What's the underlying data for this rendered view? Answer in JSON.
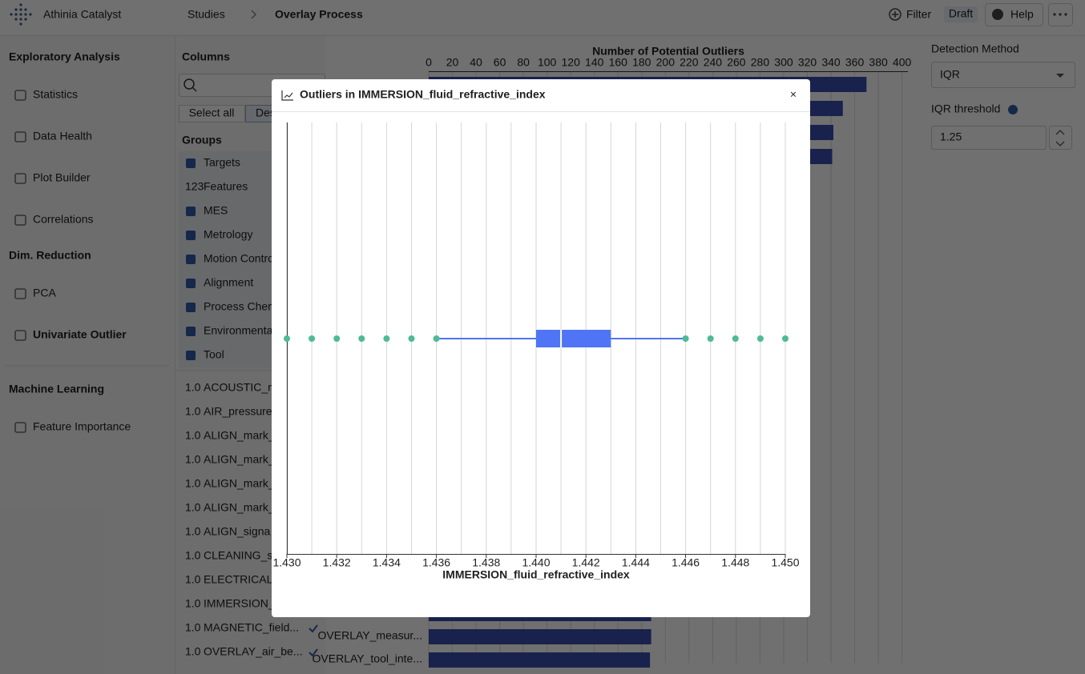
{
  "header": {
    "app_name": "Athinia Catalyst",
    "breadcrumb": [
      "Studies",
      "Overlay Process"
    ],
    "filter": "Filter",
    "status": "Draft",
    "help": "Help"
  },
  "sidebar": {
    "sections": [
      {
        "title": "Exploratory Analysis",
        "items": [
          "Statistics",
          "Data Health",
          "Plot Builder",
          "Correlations"
        ]
      },
      {
        "title": "Dim. Reduction",
        "items": [
          "PCA",
          "Univariate Outlier"
        ]
      },
      {
        "title": "Machine Learning",
        "items": [
          "Feature Importance"
        ]
      }
    ]
  },
  "columns_panel": {
    "title": "Columns",
    "select_all": "Select all",
    "deselect_all": "Deselect all",
    "groups_title": "Groups",
    "features_badge": "123",
    "groups": [
      "Targets",
      "Features",
      "MES",
      "Metrology",
      "Motion Control",
      "Alignment",
      "Process Chemistry",
      "Environmental",
      "Tool"
    ],
    "column_badge": "1.0",
    "columns": [
      "ACOUSTIC_n",
      "AIR_pressure",
      "ALIGN_mark_",
      "ALIGN_mark_",
      "ALIGN_mark_",
      "ALIGN_mark_",
      "ALIGN_signa",
      "CLEANING_s",
      "ELECTRICAL_",
      "IMMERSION_",
      "MAGNETIC_field...",
      "OVERLAY_air_be..."
    ]
  },
  "background_chart": {
    "type": "bar",
    "x_label": "Number of Potential Outliers",
    "xlim": [
      0,
      405
    ],
    "xticks": [
      0,
      20,
      40,
      60,
      80,
      100,
      120,
      140,
      160,
      180,
      200,
      220,
      240,
      260,
      280,
      300,
      320,
      340,
      360,
      380,
      400
    ],
    "color": "#3a4db0",
    "top_values": [
      370,
      350,
      342,
      341
    ],
    "bottom_categories": [
      null,
      "OVERLAY_measur...",
      "OVERLAY_tool_inte..."
    ],
    "bottom_values": [
      188,
      188,
      187
    ]
  },
  "settings": {
    "detection_label": "Detection Method",
    "detection_value": "IQR",
    "threshold_label": "IQR threshold",
    "threshold_value": "1.25"
  },
  "modal": {
    "close": "×"
  },
  "chart_data": {
    "type": "box",
    "title": "Outliers in IMMERSION_fluid_refractive_index",
    "x_label": "IMMERSION_fluid_refractive_index",
    "xlim": [
      1.43,
      1.45
    ],
    "xticks": [
      {
        "value": 1.43,
        "label": "1.430"
      },
      {
        "value": 1.432,
        "label": "1.432"
      },
      {
        "value": 1.434,
        "label": "1.434"
      },
      {
        "value": 1.436,
        "label": "1.436"
      },
      {
        "value": 1.438,
        "label": "1.438"
      },
      {
        "value": 1.44,
        "label": "1.440"
      },
      {
        "value": 1.442,
        "label": "1.442"
      },
      {
        "value": 1.444,
        "label": "1.444"
      },
      {
        "value": 1.446,
        "label": "1.446"
      },
      {
        "value": 1.448,
        "label": "1.448"
      },
      {
        "value": 1.45,
        "label": "1.450"
      }
    ],
    "minor_grid": [
      1.431,
      1.433,
      1.435,
      1.437,
      1.439,
      1.441,
      1.443,
      1.445,
      1.447,
      1.449
    ],
    "grid": true,
    "box": {
      "whisker_low": 1.436,
      "q1": 1.44,
      "median": 1.441,
      "q3": 1.443,
      "whisker_high": 1.446,
      "color": "#4f74f5"
    },
    "outliers": [
      1.43,
      1.431,
      1.432,
      1.433,
      1.434,
      1.435,
      1.447,
      1.448,
      1.449,
      1.45
    ],
    "outlier_color": "#4dbb94"
  }
}
